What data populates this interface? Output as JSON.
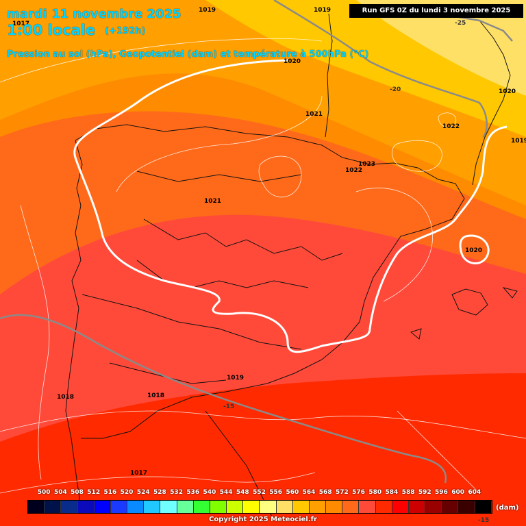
{
  "header": {
    "date_line": "mardi 11 novembre 2025",
    "time_line": "1:00 locale",
    "lead_time": "(+192h)",
    "description": "Pression au sol (hPa), Geopotentiel (dam) et température à 500hPa (°C)",
    "run_info": "Run GFS 0Z du lundi 3 novembre 2025"
  },
  "pressure_labels": [
    "1019",
    "1019",
    "1017",
    "1020",
    "1021",
    "1022",
    "1023",
    "1022",
    "1021",
    "1020",
    "1020",
    "1019",
    "1019",
    "1018",
    "1018",
    "1017"
  ],
  "temperature_labels": [
    "-25",
    "-20",
    "-15",
    "-15"
  ],
  "scale": {
    "values": [
      "500",
      "504",
      "508",
      "512",
      "516",
      "520",
      "524",
      "528",
      "532",
      "536",
      "540",
      "544",
      "548",
      "552",
      "556",
      "560",
      "564",
      "568",
      "572",
      "576",
      "580",
      "584",
      "588",
      "592",
      "596",
      "600",
      "604"
    ],
    "colors": [
      "#00001e",
      "#00124a",
      "#082b8c",
      "#0b0bbb",
      "#0000ff",
      "#1a3aff",
      "#0a8aff",
      "#20c8ff",
      "#6fffff",
      "#66ff99",
      "#33ff33",
      "#80ff00",
      "#ccff00",
      "#ffff00",
      "#ffff80",
      "#ffe066",
      "#ffc800",
      "#ffa000",
      "#ff8c00",
      "#ff6a1a",
      "#ff4a3a",
      "#ff2a00",
      "#ff0000",
      "#cc0000",
      "#990000",
      "#660000",
      "#3a0000",
      "#000000"
    ],
    "unit": "(dam)"
  },
  "copyright": "Copyright 2025 Meteociel.fr"
}
